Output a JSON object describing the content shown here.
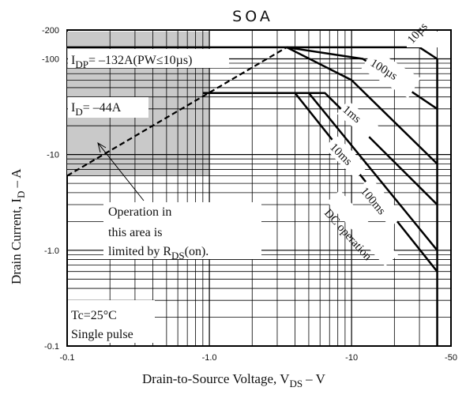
{
  "chart_data": {
    "type": "line",
    "title": "SOA",
    "xlabel": "Drain-to-Source Voltage, V",
    "xlabel_sub": "DS",
    "xlabel_unit": "– V",
    "ylabel": "Drain Current, I",
    "ylabel_sub": "D",
    "ylabel_unit": "– A",
    "x_scale": "log",
    "y_scale": "log",
    "xlim": [
      -0.1,
      -50
    ],
    "ylim": [
      -0.1,
      -200
    ],
    "x_ticks": [
      "-0.1",
      "-1.0",
      "-10",
      "-50"
    ],
    "y_ticks": [
      "-200",
      "-100",
      "-10",
      "-1.0",
      "-0.1"
    ],
    "grid": true,
    "series": [
      {
        "name": "10µs",
        "x": [
          -3.5,
          -30,
          -40
        ],
        "y": [
          -132,
          -132,
          -100
        ]
      },
      {
        "name": "100µs",
        "x": [
          -3.5,
          -12,
          -40
        ],
        "y": [
          -132,
          -100,
          -30
        ]
      },
      {
        "name": "1ms",
        "x": [
          -3.5,
          -10,
          -40
        ],
        "y": [
          -132,
          -60,
          -8
        ]
      },
      {
        "name": "10ms",
        "x": [
          -1.0,
          -6.5,
          -40
        ],
        "y": [
          -44,
          -44,
          -3
        ]
      },
      {
        "name": "100ms",
        "x": [
          -1.0,
          -5,
          -40
        ],
        "y": [
          -44,
          -44,
          -1
        ]
      },
      {
        "name": "DC operation",
        "x": [
          -0.9,
          -4,
          -40
        ],
        "y": [
          -44,
          -44,
          -0.6
        ]
      }
    ],
    "limit_line": {
      "x": [
        -0.1,
        -3.5
      ],
      "y": [
        -6,
        -132
      ]
    },
    "shaded_region": {
      "x_max": -1.0,
      "y_min": -6
    },
    "limits": {
      "idp": "I",
      "idp_sub": "DP",
      "idp_value": "= –132A(PW≤10µs)",
      "id": "I",
      "id_sub": "D",
      "id_value": "= –44A"
    },
    "annotations": {
      "rds_line1": "Operation in",
      "rds_line2": "this area is",
      "rds_line3": "limited by R",
      "rds_sub": "DS",
      "rds_end": "(on).",
      "cond_line1": "Tc=25°C",
      "cond_line2": "Single pulse"
    }
  }
}
